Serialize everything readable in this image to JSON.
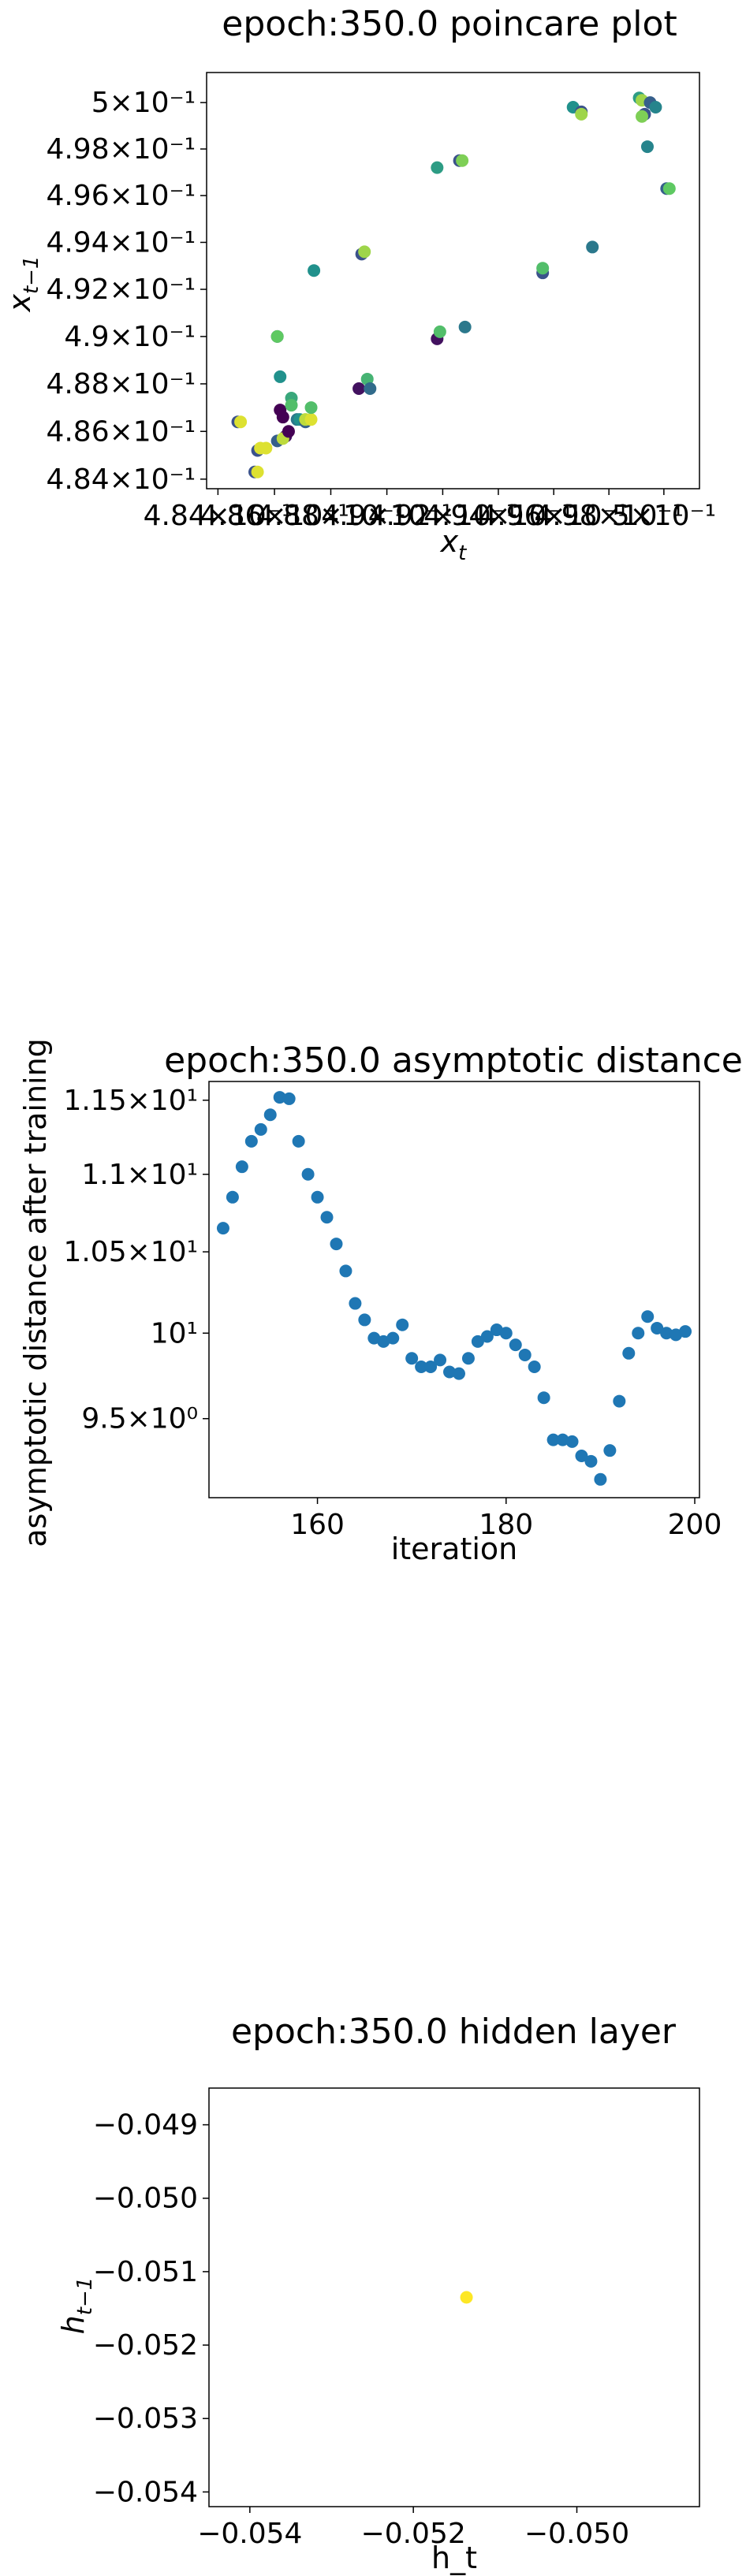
{
  "chart_data": [
    {
      "type": "scatter",
      "title": "epoch:350.0 poincare plot",
      "xlabel": "x_t",
      "ylabel": "x_{t-1}",
      "xscale": "log",
      "yscale": "log",
      "xlim": [
        0.4836,
        0.5013
      ],
      "ylim": [
        0.4836,
        0.5013
      ],
      "x_tick_values": [
        0.484,
        0.486,
        0.488,
        0.49,
        0.492,
        0.494,
        0.496,
        0.498,
        0.5
      ],
      "x_tick_labels": [
        "4.84×10⁻¹",
        "4.86×10⁻¹",
        "4.88×10⁻¹",
        "4.9×10⁻¹",
        "4.92×10⁻¹",
        "4.94×10⁻¹",
        "4.96×10⁻¹",
        "4.98×10⁻¹",
        "5×10⁻¹"
      ],
      "y_tick_values": [
        0.484,
        0.486,
        0.488,
        0.49,
        0.492,
        0.494,
        0.496,
        0.498,
        0.5
      ],
      "y_tick_labels": [
        "4.84×10⁻¹",
        "4.86×10⁻¹",
        "4.88×10⁻¹",
        "4.9×10⁻¹",
        "4.92×10⁻¹",
        "4.94×10⁻¹",
        "4.96×10⁻¹",
        "4.98×10⁻¹",
        "5×10⁻¹"
      ],
      "colormap": [
        "#440154",
        "#3b528b",
        "#21918c",
        "#5ec962",
        "#fde725"
      ],
      "points": [
        {
          "x": 0.4847,
          "y": 0.4864,
          "c": 0.25
        },
        {
          "x": 0.4848,
          "y": 0.4864,
          "c": 0.95
        },
        {
          "x": 0.4853,
          "y": 0.4843,
          "c": 0.25
        },
        {
          "x": 0.4854,
          "y": 0.4843,
          "c": 0.95
        },
        {
          "x": 0.4854,
          "y": 0.4852,
          "c": 0.25
        },
        {
          "x": 0.4855,
          "y": 0.4853,
          "c": 0.95
        },
        {
          "x": 0.4857,
          "y": 0.4853,
          "c": 0.95
        },
        {
          "x": 0.4861,
          "y": 0.4856,
          "c": 0.3
        },
        {
          "x": 0.4862,
          "y": 0.4869,
          "c": 0.0
        },
        {
          "x": 0.4863,
          "y": 0.4866,
          "c": 0.0
        },
        {
          "x": 0.4862,
          "y": 0.4883,
          "c": 0.5
        },
        {
          "x": 0.4861,
          "y": 0.49,
          "c": 0.25
        },
        {
          "x": 0.4861,
          "y": 0.49,
          "c": 0.75
        },
        {
          "x": 0.4864,
          "y": 0.4858,
          "c": 0.05
        },
        {
          "x": 0.4863,
          "y": 0.4857,
          "c": 0.9
        },
        {
          "x": 0.4865,
          "y": 0.486,
          "c": 0.0
        },
        {
          "x": 0.4866,
          "y": 0.4874,
          "c": 0.6
        },
        {
          "x": 0.4866,
          "y": 0.4871,
          "c": 0.7
        },
        {
          "x": 0.4868,
          "y": 0.4865,
          "c": 0.4
        },
        {
          "x": 0.4869,
          "y": 0.4865,
          "c": 0.5
        },
        {
          "x": 0.4871,
          "y": 0.4864,
          "c": 0.3
        },
        {
          "x": 0.4871,
          "y": 0.4865,
          "c": 0.9
        },
        {
          "x": 0.4873,
          "y": 0.4865,
          "c": 0.95
        },
        {
          "x": 0.4873,
          "y": 0.487,
          "c": 0.7
        },
        {
          "x": 0.4874,
          "y": 0.4928,
          "c": 0.5
        },
        {
          "x": 0.489,
          "y": 0.4878,
          "c": 0.05
        },
        {
          "x": 0.4891,
          "y": 0.4935,
          "c": 0.25
        },
        {
          "x": 0.4892,
          "y": 0.4936,
          "c": 0.85
        },
        {
          "x": 0.4893,
          "y": 0.4882,
          "c": 0.65
        },
        {
          "x": 0.4894,
          "y": 0.4878,
          "c": 0.35
        },
        {
          "x": 0.4918,
          "y": 0.4899,
          "c": 0.05
        },
        {
          "x": 0.4919,
          "y": 0.4902,
          "c": 0.7
        },
        {
          "x": 0.4918,
          "y": 0.4972,
          "c": 0.55
        },
        {
          "x": 0.4926,
          "y": 0.4975,
          "c": 0.25
        },
        {
          "x": 0.4927,
          "y": 0.4975,
          "c": 0.8
        },
        {
          "x": 0.4928,
          "y": 0.4904,
          "c": 0.4
        },
        {
          "x": 0.4956,
          "y": 0.4927,
          "c": 0.25
        },
        {
          "x": 0.4956,
          "y": 0.4929,
          "c": 0.7
        },
        {
          "x": 0.4967,
          "y": 0.4998,
          "c": 0.5
        },
        {
          "x": 0.497,
          "y": 0.4996,
          "c": 0.25
        },
        {
          "x": 0.497,
          "y": 0.4995,
          "c": 0.85
        },
        {
          "x": 0.4974,
          "y": 0.4938,
          "c": 0.4
        },
        {
          "x": 0.4991,
          "y": 0.5002,
          "c": 0.55
        },
        {
          "x": 0.4992,
          "y": 0.5001,
          "c": 0.85
        },
        {
          "x": 0.4993,
          "y": 0.4995,
          "c": 0.25
        },
        {
          "x": 0.4992,
          "y": 0.4994,
          "c": 0.8
        },
        {
          "x": 0.4995,
          "y": 0.5,
          "c": 0.3
        },
        {
          "x": 0.4994,
          "y": 0.4981,
          "c": 0.45
        },
        {
          "x": 0.4997,
          "y": 0.4998,
          "c": 0.45
        },
        {
          "x": 0.5001,
          "y": 0.4963,
          "c": 0.3
        },
        {
          "x": 0.5002,
          "y": 0.4963,
          "c": 0.75
        }
      ]
    },
    {
      "type": "scatter",
      "title": "epoch:350.0 asymptotic distance",
      "xlabel": "iteration",
      "ylabel": "asymptotic distance after training",
      "yscale": "log",
      "xlim": [
        148.5,
        200.5
      ],
      "ylim": [
        9.06,
        11.63
      ],
      "x_tick_values": [
        160,
        180,
        200
      ],
      "x_tick_labels": [
        "160",
        "180",
        "200"
      ],
      "y_tick_values": [
        9.5,
        10,
        10.5,
        11,
        11.5
      ],
      "y_tick_labels": [
        "9.5×10⁰",
        "10¹",
        "1.05×10¹",
        "1.1×10¹",
        "1.15×10¹"
      ],
      "color": "#1f77b4",
      "x": [
        150,
        151,
        152,
        153,
        154,
        155,
        156,
        157,
        158,
        159,
        160,
        161,
        162,
        163,
        164,
        165,
        166,
        167,
        168,
        169,
        170,
        171,
        172,
        173,
        174,
        175,
        176,
        177,
        178,
        179,
        180,
        181,
        182,
        183,
        184,
        185,
        186,
        187,
        188,
        189,
        190,
        191,
        192,
        193,
        194,
        195,
        196,
        197,
        198,
        199
      ],
      "y": [
        10.65,
        10.85,
        11.05,
        11.22,
        11.3,
        11.4,
        11.52,
        11.51,
        11.22,
        11.0,
        10.85,
        10.72,
        10.55,
        10.38,
        10.18,
        10.08,
        9.97,
        9.95,
        9.97,
        10.05,
        9.85,
        9.8,
        9.8,
        9.84,
        9.77,
        9.76,
        9.85,
        9.95,
        9.98,
        10.02,
        10.0,
        9.93,
        9.87,
        9.8,
        9.62,
        9.38,
        9.38,
        9.37,
        9.29,
        9.26,
        9.16,
        9.32,
        9.6,
        9.88,
        10.0,
        10.1,
        10.03,
        10.0,
        9.99,
        10.01
      ]
    },
    {
      "type": "scatter",
      "title": "epoch:350.0 hidden layer",
      "xlabel": "h_t",
      "ylabel": "h_{t-1}",
      "xlim": [
        -0.0545,
        -0.0485
      ],
      "ylim": [
        -0.0542,
        -0.0485
      ],
      "x_tick_values": [
        -0.054,
        -0.052,
        -0.05
      ],
      "x_tick_labels": [
        "−0.054",
        "−0.052",
        "−0.050"
      ],
      "y_tick_values": [
        -0.049,
        -0.05,
        -0.051,
        -0.052,
        -0.053,
        -0.054
      ],
      "y_tick_labels": [
        "−0.049",
        "−0.050",
        "−0.051",
        "−0.052",
        "−0.053",
        "−0.054"
      ],
      "color": "#fde725",
      "x": [
        -0.05135
      ],
      "y": [
        -0.05135
      ]
    }
  ]
}
